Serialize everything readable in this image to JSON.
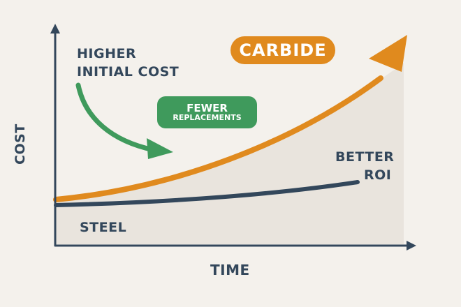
{
  "labels": {
    "higher_cost_line1": "HIGHER",
    "higher_cost_line2": "INITIAL COST",
    "carbide": "CARBIDE",
    "fewer_line1": "FEWER",
    "fewer_line2": "REPLACEMENTS",
    "better_line1": "BETTER",
    "better_line2": "ROI",
    "steel": "STEEL",
    "x_axis": "TIME",
    "y_axis": "COST"
  },
  "colors": {
    "background": "#f4f1ec",
    "carbide": "#e08a1e",
    "steel": "#33475b",
    "fewer_replacements": "#3f9a5c",
    "shaded_area": "#e9e4dd",
    "axis": "#33475b"
  },
  "icons": {
    "axis_arrows": "arrow-head",
    "callout_arrow": "curved-arrow"
  }
}
